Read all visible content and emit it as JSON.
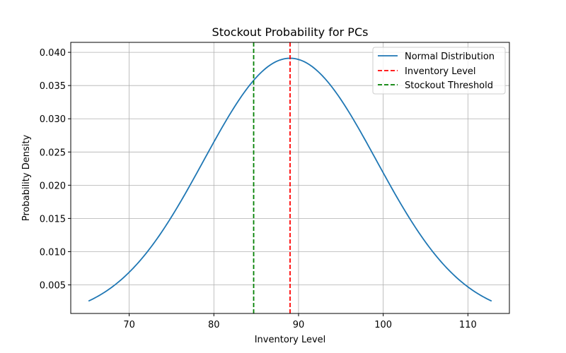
{
  "chart_data": {
    "type": "line",
    "title": "Stockout Probability for PCs",
    "xlabel": "Inventory Level",
    "ylabel": "Probability Density",
    "xlim": [
      63.1,
      114.9
    ],
    "ylim": [
      0.0007,
      0.0415
    ],
    "xticks": [
      70,
      80,
      90,
      100,
      110
    ],
    "yticks": [
      0.005,
      0.01,
      0.015,
      0.02,
      0.025,
      0.03,
      0.035,
      0.04
    ],
    "ytick_labels": [
      "0.005",
      "0.010",
      "0.015",
      "0.020",
      "0.025",
      "0.030",
      "0.035",
      "0.040"
    ],
    "grid": true,
    "legend_position": "top-right",
    "series": [
      {
        "name": "Normal Distribution",
        "color": "#1f77b4",
        "style": "solid",
        "mean": 89,
        "std": 10.2,
        "x_range": [
          65.2,
          112.8
        ]
      },
      {
        "name": "Inventory Level",
        "color": "#ff0000",
        "style": "dashed",
        "x": 89
      },
      {
        "name": "Stockout Threshold",
        "color": "#008000",
        "style": "dashed",
        "x": 84.7
      }
    ]
  }
}
